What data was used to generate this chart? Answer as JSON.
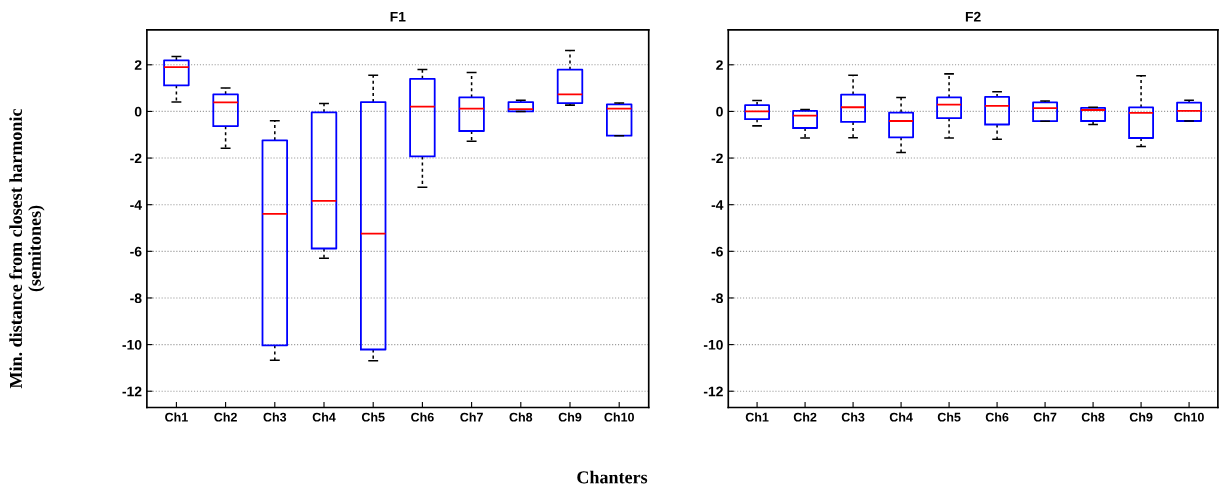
{
  "chart_data": [
    {
      "type": "box",
      "title": "F1",
      "xlabel": "Chanters",
      "ylabel": "Min. distance from closest harmonic\n(semitones)",
      "categories": [
        "Ch1",
        "Ch2",
        "Ch3",
        "Ch4",
        "Ch5",
        "Ch6",
        "Ch7",
        "Ch8",
        "Ch9",
        "Ch10"
      ],
      "ylim": [
        -12.7,
        3.5
      ],
      "yticks": [
        -12,
        -10,
        -8,
        -6,
        -4,
        -2,
        0,
        2
      ],
      "grid": "y",
      "boxes": [
        {
          "low": 0.4,
          "q1": 1.12,
          "median": 1.9,
          "q3": 2.19,
          "high": 2.36
        },
        {
          "low": -1.58,
          "q1": -0.63,
          "median": 0.39,
          "q3": 0.73,
          "high": 1.0
        },
        {
          "low": -10.67,
          "q1": -10.03,
          "median": -4.39,
          "q3": -1.24,
          "high": -0.4
        },
        {
          "low": -6.3,
          "q1": -5.88,
          "median": -3.84,
          "q3": -0.04,
          "high": 0.34
        },
        {
          "low": -10.69,
          "q1": -10.21,
          "median": -5.24,
          "q3": 0.4,
          "high": 1.55
        },
        {
          "low": -3.25,
          "q1": -1.93,
          "median": 0.21,
          "q3": 1.4,
          "high": 1.8
        },
        {
          "low": -1.28,
          "q1": -0.84,
          "median": 0.12,
          "q3": 0.6,
          "high": 1.67
        },
        {
          "low": 0.0,
          "q1": 0.0,
          "median": 0.1,
          "q3": 0.4,
          "high": 0.48
        },
        {
          "low": 0.27,
          "q1": 0.36,
          "median": 0.73,
          "q3": 1.79,
          "high": 2.61
        },
        {
          "low": -1.04,
          "q1": -1.04,
          "median": 0.12,
          "q3": 0.3,
          "high": 0.36
        }
      ]
    },
    {
      "type": "box",
      "title": "F2",
      "categories": [
        "Ch1",
        "Ch2",
        "Ch3",
        "Ch4",
        "Ch5",
        "Ch6",
        "Ch7",
        "Ch8",
        "Ch9",
        "Ch10"
      ],
      "ylim": [
        -12.7,
        3.5
      ],
      "yticks": [
        -12,
        -10,
        -8,
        -6,
        -4,
        -2,
        0,
        2
      ],
      "grid": "y",
      "boxes": [
        {
          "low": -0.62,
          "q1": -0.33,
          "median": 0.0,
          "q3": 0.27,
          "high": 0.47
        },
        {
          "low": -1.14,
          "q1": -0.71,
          "median": -0.18,
          "q3": 0.02,
          "high": 0.08
        },
        {
          "low": -1.13,
          "q1": -0.45,
          "median": 0.18,
          "q3": 0.72,
          "high": 1.55
        },
        {
          "low": -1.76,
          "q1": -1.11,
          "median": -0.41,
          "q3": -0.05,
          "high": 0.6
        },
        {
          "low": -1.14,
          "q1": -0.29,
          "median": 0.29,
          "q3": 0.6,
          "high": 1.61
        },
        {
          "low": -1.19,
          "q1": -0.56,
          "median": 0.24,
          "q3": 0.62,
          "high": 0.84
        },
        {
          "low": -0.42,
          "q1": -0.42,
          "median": 0.14,
          "q3": 0.39,
          "high": 0.45
        },
        {
          "low": -0.56,
          "q1": -0.41,
          "median": 0.06,
          "q3": 0.15,
          "high": 0.18
        },
        {
          "low": -1.5,
          "q1": -1.14,
          "median": -0.06,
          "q3": 0.17,
          "high": 1.53
        },
        {
          "low": -0.41,
          "q1": -0.41,
          "median": 0.02,
          "q3": 0.38,
          "high": 0.48
        }
      ]
    }
  ]
}
